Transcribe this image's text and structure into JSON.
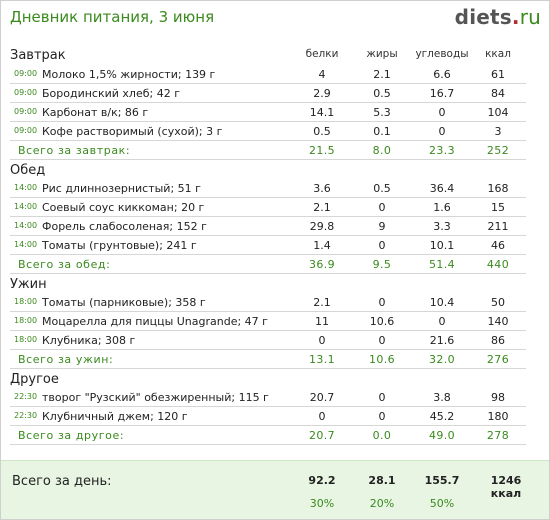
{
  "header": {
    "title": "Дневник питания, 3 июня",
    "logo_main": "diets",
    "logo_dot": ".",
    "logo_tld": "ru"
  },
  "columns": {
    "protein": "белки",
    "fat": "жиры",
    "carbs": "углеводы",
    "kcal": "ккал"
  },
  "sections": [
    {
      "title": "Завтрак",
      "items": [
        {
          "time": "09:00",
          "food": "Молоко 1,5% жирности; 139 г",
          "protein": "4",
          "fat": "2.1",
          "carbs": "6.6",
          "kcal": "61"
        },
        {
          "time": "09:00",
          "food": "Бородинский хлеб; 42 г",
          "protein": "2.9",
          "fat": "0.5",
          "carbs": "16.7",
          "kcal": "84"
        },
        {
          "time": "09:00",
          "food": "Карбонат в/к; 86 г",
          "protein": "14.1",
          "fat": "5.3",
          "carbs": "0",
          "kcal": "104"
        },
        {
          "time": "09:00",
          "food": "Кофе растворимый (сухой); 3 г",
          "protein": "0.5",
          "fat": "0.1",
          "carbs": "0",
          "kcal": "3"
        }
      ],
      "total": {
        "label": "Всего за завтрак:",
        "protein": "21.5",
        "fat": "8.0",
        "carbs": "23.3",
        "kcal": "252"
      }
    },
    {
      "title": "Обед",
      "items": [
        {
          "time": "14:00",
          "food": "Рис длиннозернистый; 51 г",
          "protein": "3.6",
          "fat": "0.5",
          "carbs": "36.4",
          "kcal": "168"
        },
        {
          "time": "14:00",
          "food": "Соевый соус киккоман; 20 г",
          "protein": "2.1",
          "fat": "0",
          "carbs": "1.6",
          "kcal": "15"
        },
        {
          "time": "14:00",
          "food": "Форель слабосоленая; 152 г",
          "protein": "29.8",
          "fat": "9",
          "carbs": "3.3",
          "kcal": "211"
        },
        {
          "time": "14:00",
          "food": "Томаты (грунтовые); 241 г",
          "protein": "1.4",
          "fat": "0",
          "carbs": "10.1",
          "kcal": "46"
        }
      ],
      "total": {
        "label": "Всего за обед:",
        "protein": "36.9",
        "fat": "9.5",
        "carbs": "51.4",
        "kcal": "440"
      }
    },
    {
      "title": "Ужин",
      "items": [
        {
          "time": "18:00",
          "food": "Томаты (парниковые); 358 г",
          "protein": "2.1",
          "fat": "0",
          "carbs": "10.4",
          "kcal": "50"
        },
        {
          "time": "18:00",
          "food": "Моцарелла для пиццы Unagrande; 47 г",
          "protein": "11",
          "fat": "10.6",
          "carbs": "0",
          "kcal": "140"
        },
        {
          "time": "18:00",
          "food": "Клубника; 308 г",
          "protein": "0",
          "fat": "0",
          "carbs": "21.6",
          "kcal": "86"
        }
      ],
      "total": {
        "label": "Всего за ужин:",
        "protein": "13.1",
        "fat": "10.6",
        "carbs": "32.0",
        "kcal": "276"
      }
    },
    {
      "title": "Другое",
      "items": [
        {
          "time": "22:30",
          "food": "творог \"Рузский\" обезжиренный; 115 г",
          "protein": "20.7",
          "fat": "0",
          "carbs": "3.8",
          "kcal": "98"
        },
        {
          "time": "22:30",
          "food": "Клубничный джем; 120 г",
          "protein": "0",
          "fat": "0",
          "carbs": "45.2",
          "kcal": "180"
        }
      ],
      "total": {
        "label": "Всего за другое:",
        "protein": "20.7",
        "fat": "0.0",
        "carbs": "49.0",
        "kcal": "278"
      }
    }
  ],
  "day_total": {
    "label": "Всего за день:",
    "protein": "92.2",
    "fat": "28.1",
    "carbs": "155.7",
    "kcal": "1246 ккал",
    "protein_pct": "30%",
    "fat_pct": "20%",
    "carbs_pct": "50%"
  }
}
